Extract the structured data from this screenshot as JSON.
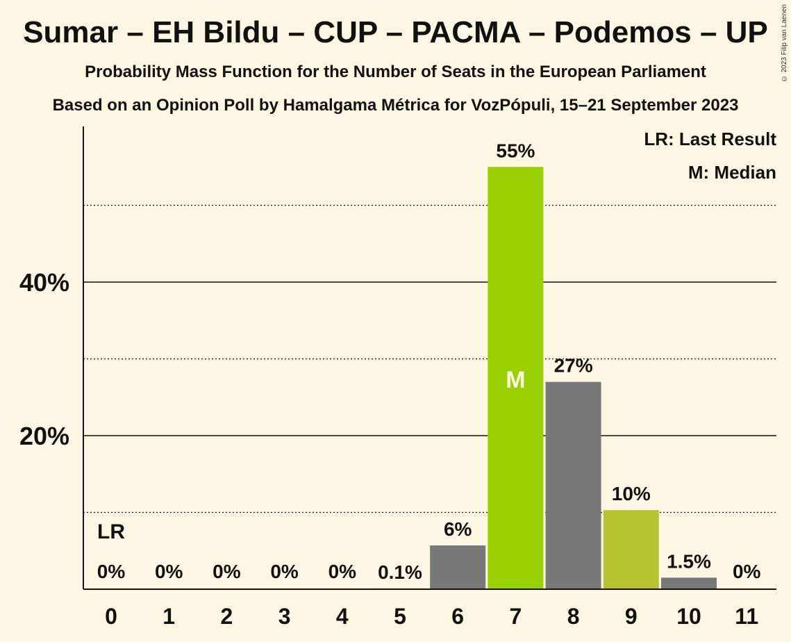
{
  "title": "Sumar – EH Bildu – CUP – PACMA – Podemos – UP",
  "subtitle": "Probability Mass Function for the Number of Seats in the European Parliament",
  "subtitle2": "Based on an Opinion Poll by Hamalgama Métrica for VozPópuli, 15–21 September 2023",
  "copyright": "© 2023 Filip van Laenen",
  "legend": {
    "last_result": "LR: Last Result",
    "median": "M: Median"
  },
  "colors": {
    "background": "#fdf6e3",
    "bar": "#787878",
    "median_bar": "#99d100",
    "highlight_bar": "#b7c430",
    "text": "#111111"
  },
  "chart_data": {
    "type": "bar",
    "categories": [
      "0",
      "1",
      "2",
      "3",
      "4",
      "5",
      "6",
      "7",
      "8",
      "9",
      "10",
      "11"
    ],
    "values": [
      0,
      0,
      0,
      0,
      0,
      0.1,
      5.7,
      55,
      27,
      10.3,
      1.5,
      0
    ],
    "data_labels": [
      "0%",
      "0%",
      "0%",
      "0%",
      "0%",
      "0.1%",
      "6%",
      "55%",
      "27%",
      "10%",
      "1.5%",
      "0%"
    ],
    "bar_colors": [
      "#787878",
      "#787878",
      "#787878",
      "#787878",
      "#787878",
      "#787878",
      "#787878",
      "#99d100",
      "#787878",
      "#b7c430",
      "#787878",
      "#787878"
    ],
    "ylim": [
      0,
      60
    ],
    "yticks": [
      20,
      40
    ],
    "ytick_labels": [
      "20%",
      "40%"
    ],
    "minor_gridlines": [
      10,
      30,
      50
    ],
    "last_result_index": 0,
    "last_result_label": "LR",
    "median_index": 7,
    "median_label": "M",
    "legend_position": "top-right"
  }
}
